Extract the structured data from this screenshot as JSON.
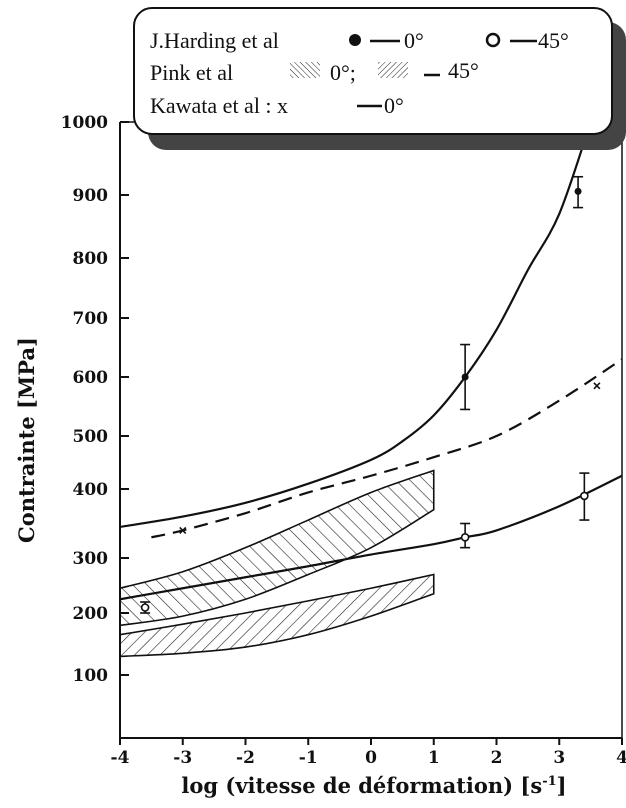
{
  "chart_data": {
    "type": "line",
    "xlabel": "log (vitesse de déformation) [s",
    "xlabel_sup": "-1",
    "xlabel_close": "]",
    "ylabel": "Contrainte [MPa]",
    "xlim": [
      -4,
      4
    ],
    "ylim": [
      0,
      1000
    ],
    "x_ticks": [
      -4,
      -3,
      -2,
      -1,
      0,
      1,
      2,
      3,
      4
    ],
    "x_tick_labels": [
      "-4",
      "-3",
      "-2",
      "-1",
      "0",
      "1",
      "2",
      "3",
      "4"
    ],
    "y_ticks": [
      100,
      200,
      300,
      400,
      500,
      600,
      700,
      800,
      900,
      1000
    ],
    "y_tick_labels": [
      "100",
      "200",
      "300",
      "400",
      "500",
      "600",
      "700",
      "800",
      "900",
      "1000"
    ],
    "legend": {
      "line1_text": "J.Harding et al",
      "line1_a": "0°",
      "line1_b": "45°",
      "line2_text": "Pink et al",
      "line2_a": "0°;",
      "line2_b": "45°",
      "line3_text": "Kawata et al : x",
      "line3_a": "0°"
    },
    "series": [
      {
        "name": "J.Harding et al 0°",
        "style": "solid",
        "x": [
          -4,
          -3,
          -2,
          -1,
          0,
          0.5,
          1,
          1.5,
          2,
          2.5,
          3,
          3.5
        ],
        "y": [
          345,
          360,
          380,
          410,
          455,
          490,
          535,
          600,
          680,
          780,
          870,
          1000
        ],
        "points": [
          {
            "x": 1.5,
            "y": 600,
            "err_lo": 545,
            "err_hi": 655
          },
          {
            "x": 3.3,
            "y": 905,
            "err_lo": 880,
            "err_hi": 925
          }
        ],
        "marker": "filled-circle"
      },
      {
        "name": "J.Harding et al 45°",
        "style": "solid",
        "x": [
          -4,
          -3,
          -2,
          -1,
          0,
          1,
          1.5,
          2,
          3,
          4
        ],
        "y": [
          225,
          245,
          265,
          285,
          305,
          320,
          330,
          340,
          375,
          425
        ],
        "points": [
          {
            "x": -3.6,
            "y": 210,
            "err_lo": 200,
            "err_hi": 220
          },
          {
            "x": 1.5,
            "y": 330,
            "err_lo": 315,
            "err_hi": 350
          },
          {
            "x": 3.4,
            "y": 390,
            "err_lo": 355,
            "err_hi": 430
          }
        ],
        "marker": "open-circle"
      },
      {
        "name": "Kawata et al 0°",
        "style": "dashed",
        "x": [
          -3.5,
          -3,
          -2,
          -1,
          0,
          1,
          2,
          3,
          4
        ],
        "y": [
          330,
          340,
          365,
          395,
          425,
          460,
          500,
          560,
          630
        ],
        "points": [
          {
            "x": -3,
            "y": 340
          },
          {
            "x": 3.6,
            "y": 585
          }
        ],
        "marker": "x"
      }
    ],
    "bands": [
      {
        "name": "Pink et al 0°",
        "hatch": "forward",
        "x": [
          -4,
          -3,
          -2,
          -1,
          0,
          1
        ],
        "upper": [
          245,
          275,
          315,
          355,
          395,
          435
        ],
        "lower": [
          180,
          195,
          225,
          270,
          315,
          370
        ]
      },
      {
        "name": "Pink et al 45°",
        "hatch": "backward",
        "x": [
          -4,
          -3,
          -2,
          -1,
          0,
          1
        ],
        "upper": [
          165,
          182,
          200,
          222,
          245,
          270
        ],
        "lower": [
          130,
          135,
          145,
          165,
          195,
          235
        ]
      }
    ]
  }
}
